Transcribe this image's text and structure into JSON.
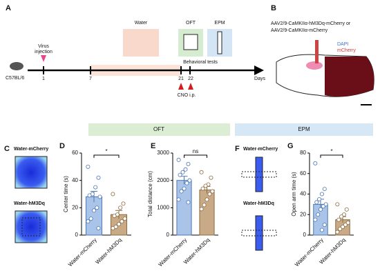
{
  "timeline": {
    "label": "A",
    "animal": "C57BL/6",
    "virus": "Virus",
    "injection": "injection",
    "day_1": "1",
    "day_7": "7",
    "water": "Water",
    "oft": "OFT",
    "epm": "EPM",
    "behavioral": "Behavioral tests",
    "day_21": "21",
    "day_22": "22",
    "cno": "CNO i.p.",
    "days": "Days"
  },
  "panel_b": {
    "label": "B",
    "line1": "AAV2/9-CaMKIIα-hM3Dq-mCherry or",
    "line2": "AAV2/9-CaMKIIα-mCherry",
    "dapi": "DAPI",
    "mcherry": "mCherry"
  },
  "section_oft": "OFT",
  "section_epm": "EPM",
  "panel_c": {
    "label": "C",
    "top": "Water-mCherry",
    "bottom": "Water-hM3Dq"
  },
  "panel_f": {
    "label": "F",
    "top": "Water-mCherry",
    "bottom": "Water-hM3Dq"
  },
  "chart_data": [
    {
      "type": "bar",
      "label": "D",
      "y_label": "Center time (s)",
      "categories": [
        "Water-mCherry",
        "Water-hM3Dq"
      ],
      "values": [
        28,
        15
      ],
      "errors": [
        4,
        3
      ],
      "colors": [
        "#a9c4e8",
        "#c9aa86"
      ],
      "edge_colors": [
        "#4a76b3",
        "#8b6a3f"
      ],
      "points": [
        [
          50,
          42,
          35,
          30,
          29,
          28,
          20,
          18,
          12,
          10,
          5
        ],
        [
          30,
          23,
          20,
          15,
          14,
          12,
          10,
          8,
          6,
          5
        ]
      ],
      "significance": "*",
      "ylim": [
        0,
        60
      ],
      "yticks": [
        0,
        20,
        40,
        60
      ]
    },
    {
      "type": "bar",
      "label": "E",
      "y_label": "Total distance (cm)",
      "categories": [
        "Water-mCherry",
        "Water-hM3Dq"
      ],
      "values": [
        2000,
        1650
      ],
      "errors": [
        150,
        130
      ],
      "colors": [
        "#a9c4e8",
        "#c9aa86"
      ],
      "edge_colors": [
        "#4a76b3",
        "#8b6a3f"
      ],
      "points": [
        [
          2750,
          2600,
          2400,
          2300,
          2200,
          2000,
          1900,
          1700,
          1600,
          1300,
          1200
        ],
        [
          2300,
          2100,
          1850,
          1800,
          1700,
          1600,
          1500,
          1300,
          1100,
          950
        ]
      ],
      "significance": "ns",
      "ylim": [
        0,
        3000
      ],
      "yticks": [
        0,
        1000,
        2000,
        3000
      ]
    },
    {
      "type": "bar",
      "label": "G",
      "y_label": "Open arm time (s)",
      "categories": [
        "Water-mCherry",
        "Water-hM3Dq"
      ],
      "values": [
        30,
        15
      ],
      "errors": [
        5,
        3
      ],
      "colors": [
        "#a9c4e8",
        "#c9aa86"
      ],
      "edge_colors": [
        "#4a76b3",
        "#8b6a3f"
      ],
      "points": [
        [
          70,
          45,
          40,
          35,
          32,
          30,
          28,
          25,
          20,
          15,
          10,
          5
        ],
        [
          30,
          25,
          20,
          18,
          15,
          12,
          10,
          8,
          6,
          3
        ]
      ],
      "significance": "*",
      "ylim": [
        0,
        80
      ],
      "yticks": [
        0,
        20,
        40,
        60,
        80
      ]
    }
  ]
}
